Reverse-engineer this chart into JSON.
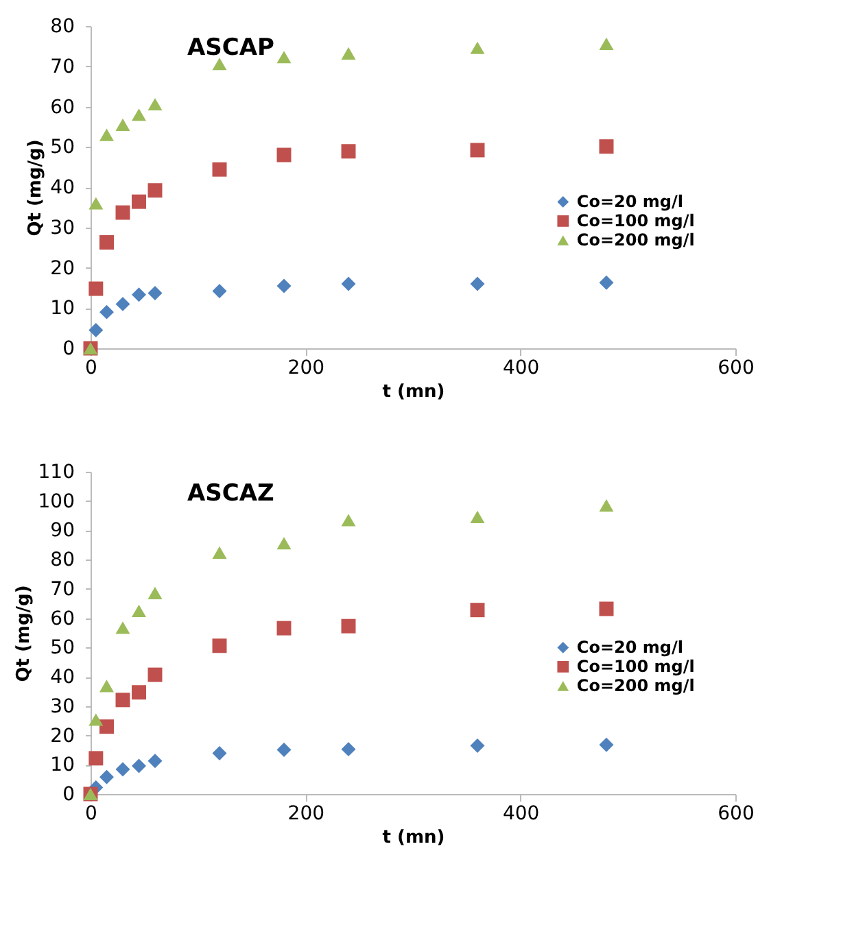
{
  "chart_data": [
    {
      "type": "scatter",
      "title": "ASCAP",
      "xlabel": "t (mn)",
      "ylabel": "Qt (mg/g)",
      "xlim": [
        0,
        600
      ],
      "xticks": [
        0,
        200,
        400,
        600
      ],
      "ylim": [
        0,
        80
      ],
      "yticks": [
        0,
        10,
        20,
        30,
        40,
        50,
        60,
        70,
        80
      ],
      "grid": false,
      "legend": "right",
      "x": [
        0,
        5,
        15,
        30,
        45,
        60,
        120,
        180,
        240,
        360,
        480
      ],
      "series": [
        {
          "name": "Co=20 mg/l",
          "color": "#4f81bd",
          "marker": "diamond",
          "values": [
            null,
            4.5,
            9,
            11,
            13.3,
            13.7,
            14.2,
            15.5,
            16,
            16,
            16.3
          ]
        },
        {
          "name": "Co=100 mg/l",
          "color": "#c0504d",
          "marker": "square",
          "values": [
            0,
            14.8,
            26.3,
            33.7,
            36.4,
            39.2,
            44.4,
            48,
            48.9,
            49.2,
            50.1
          ]
        },
        {
          "name": "Co=200 mg/l",
          "color": "#9bbb59",
          "marker": "triangle",
          "values": [
            0,
            36,
            53,
            55.5,
            58,
            60.6,
            70.6,
            72.3,
            73.2,
            74.6,
            75.6
          ]
        }
      ]
    },
    {
      "type": "scatter",
      "title": "ASCAZ",
      "xlabel": "t (mn)",
      "ylabel": "Qt (mg/g)",
      "xlim": [
        0,
        600
      ],
      "xticks": [
        0,
        200,
        400,
        600
      ],
      "ylim": [
        0,
        110
      ],
      "yticks": [
        0,
        10,
        20,
        30,
        40,
        50,
        60,
        70,
        80,
        90,
        100,
        110
      ],
      "grid": false,
      "legend": "right",
      "x": [
        0,
        5,
        15,
        30,
        45,
        60,
        120,
        180,
        240,
        360,
        480
      ],
      "series": [
        {
          "name": "Co=20 mg/l",
          "color": "#4f81bd",
          "marker": "diamond",
          "values": [
            null,
            2.2,
            5.8,
            8.4,
            9.6,
            11.3,
            13.9,
            15.1,
            15.3,
            16.5,
            16.8
          ]
        },
        {
          "name": "Co=100 mg/l",
          "color": "#c0504d",
          "marker": "square",
          "values": [
            0,
            12.2,
            23,
            32.1,
            34.7,
            40.7,
            50.6,
            56.6,
            57.3,
            62.8,
            63.2
          ]
        },
        {
          "name": "Co=200 mg/l",
          "color": "#9bbb59",
          "marker": "triangle",
          "values": [
            0,
            25.4,
            36.9,
            56.8,
            62.5,
            68.6,
            82.4,
            85.6,
            93.5,
            94.6,
            98.5
          ]
        }
      ]
    }
  ]
}
